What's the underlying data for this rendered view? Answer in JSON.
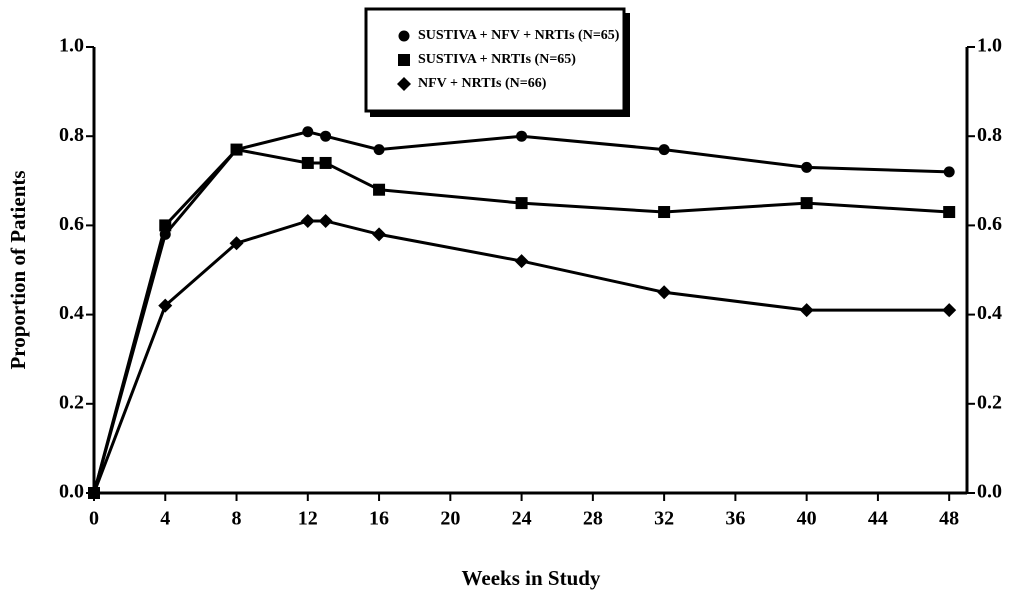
{
  "chart_data": {
    "type": "line",
    "x_label": "Weeks in Study",
    "y_label": "Proportion of Patients",
    "xlim": [
      0,
      49
    ],
    "xticks": [
      0,
      4,
      8,
      12,
      16,
      20,
      24,
      28,
      32,
      36,
      40,
      44,
      48
    ],
    "ylim": [
      0,
      1
    ],
    "yticks": [
      {
        "value": 0,
        "label": "0.0"
      },
      0.2,
      0.4,
      0.6,
      0.8,
      {
        "value": 1,
        "label": "1.0"
      }
    ],
    "x": [
      0,
      4,
      8,
      12,
      13,
      16,
      24,
      32,
      40,
      48
    ],
    "series": [
      {
        "name": "SUSTIVA + NFV + NRTIs (N=65)",
        "marker": "circle",
        "color": "#000000",
        "values": [
          0,
          0.58,
          0.77,
          0.81,
          0.8,
          0.77,
          0.8,
          0.77,
          0.73,
          0.72
        ]
      },
      {
        "name": "SUSTIVA + NRTIs (N=65)",
        "marker": "square",
        "color": "#000000",
        "values": [
          0,
          0.6,
          0.77,
          0.74,
          0.74,
          0.68,
          0.65,
          0.63,
          0.65,
          0.63
        ]
      },
      {
        "name": "NFV + NRTIs (N=66)",
        "marker": "diamond",
        "color": "#000000",
        "values": [
          0,
          0.42,
          0.56,
          0.61,
          0.61,
          0.58,
          0.52,
          0.45,
          0.41,
          0.41
        ]
      }
    ]
  }
}
